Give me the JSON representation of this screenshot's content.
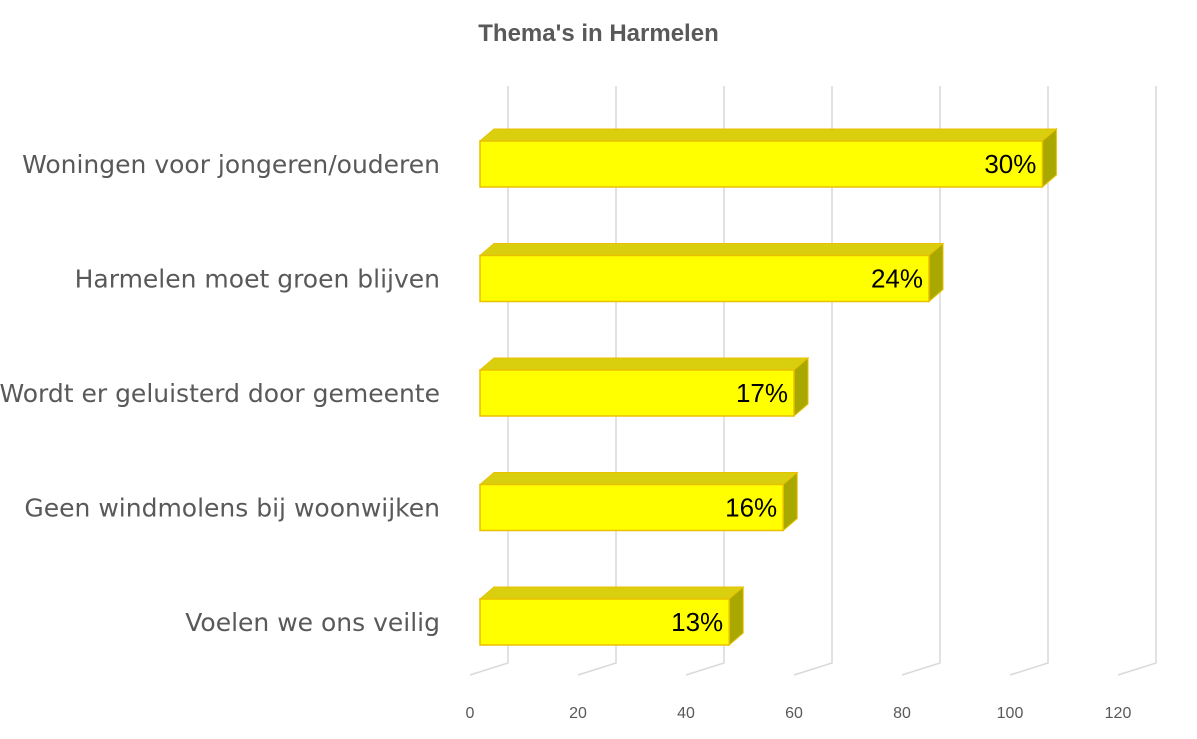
{
  "chart_data": {
    "type": "bar",
    "orientation": "horizontal",
    "title": "Thema's in Harmelen",
    "categories": [
      "Woningen voor jongeren/ouderen",
      "Harmelen moet groen blijven",
      "Wordt er geluisterd door gemeente",
      "Geen windmolens bij woonwijken",
      "Voelen we ons veilig"
    ],
    "values": [
      106,
      85,
      60,
      58,
      48
    ],
    "data_labels": [
      "30%",
      "24%",
      "17%",
      "16%",
      "13%"
    ],
    "xlim": [
      0,
      120
    ],
    "x_ticks": [
      0,
      20,
      40,
      60,
      80,
      100,
      120
    ],
    "xlabel": "",
    "ylabel": "",
    "grid": true,
    "legend": "none",
    "style": "3d"
  },
  "colors": {
    "bar_front": "#ffff00",
    "bar_top": "#d9cf0e",
    "bar_side": "#a8a800",
    "bar_border": "#e8c000",
    "grid": "#d9d9d9",
    "text": "#595959"
  }
}
